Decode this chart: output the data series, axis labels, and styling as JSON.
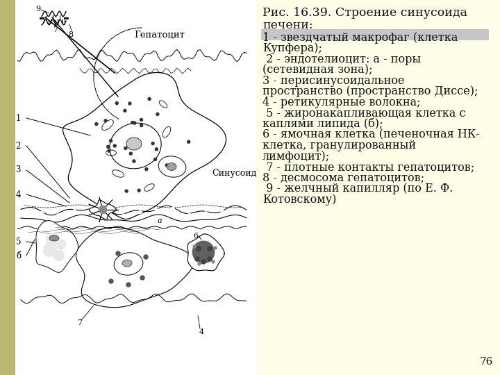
{
  "title_line1": "Рис. 16.39. Строение синусоида",
  "title_line2": "печени:",
  "description_lines": [
    "1 - звездчатый макрофаг (клетка",
    "Купфера);",
    " 2 - эндотелиоцит: а - поры",
    "(сетевидная зона);",
    "3 - перисинусоидальное",
    "пространство (пространство Диссе);",
    "4 - ретикулярные волокна;",
    " 5 - жиронакапливающая клетка с",
    "каплями липида (б);",
    "6 - ямочная клетка (печеночная НК-",
    "клетка, гранулированный",
    "лимфоцит);",
    " 7 - плотные контакты гепатоцитов;",
    "8 - десмосома гепатоцитов;",
    " 9 - желчный капилляр (по Е. Ф.",
    "Котовскому)"
  ],
  "highlight_color": "#9999aa",
  "bg_color_right": "#fdfde8",
  "bg_color_left": "#ffffff",
  "left_strip_color": "#b8b870",
  "text_color": "#111111",
  "page_number": "76",
  "title_fontsize": 12.5,
  "body_fontsize": 11.5,
  "page_num_fontsize": 11
}
